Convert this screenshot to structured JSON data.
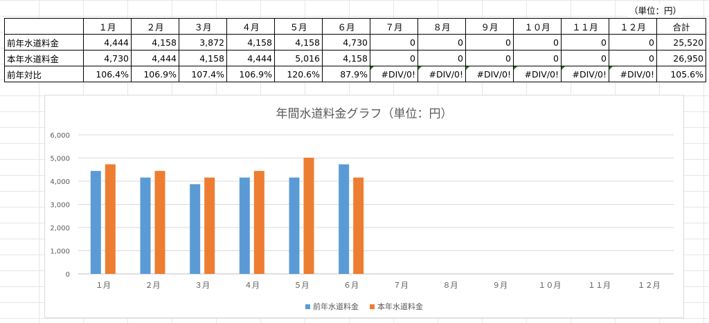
{
  "unit_note": "（単位：円）",
  "table": {
    "headers": [
      "",
      "１月",
      "２月",
      "３月",
      "４月",
      "５月",
      "６月",
      "７月",
      "８月",
      "９月",
      "１０月",
      "１１月",
      "１２月",
      "合計"
    ],
    "rows": [
      {
        "label": "前年水道料金",
        "cells": [
          "4,444",
          "4,158",
          "3,872",
          "4,158",
          "4,158",
          "4,730",
          "0",
          "0",
          "0",
          "0",
          "0",
          "0",
          "25,520"
        ]
      },
      {
        "label": "本年水道料金",
        "cells": [
          "4,730",
          "4,444",
          "4,158",
          "4,444",
          "5,016",
          "4,158",
          "0",
          "0",
          "0",
          "0",
          "0",
          "0",
          "26,950"
        ]
      },
      {
        "label": "前年対比",
        "cells": [
          "106.4%",
          "106.9%",
          "107.4%",
          "106.9%",
          "120.6%",
          "87.9%",
          "#DIV/0!",
          "#DIV/0!",
          "#DIV/0!",
          "#DIV/0!",
          "#DIV/0!",
          "#DIV/0!",
          "105.6%"
        ]
      }
    ]
  },
  "chart_data": {
    "type": "bar",
    "title": "年間水道料金グラフ（単位：円）",
    "categories": [
      "１月",
      "２月",
      "３月",
      "４月",
      "５月",
      "６月",
      "７月",
      "８月",
      "９月",
      "１０月",
      "１１月",
      "１２月"
    ],
    "series": [
      {
        "name": "前年水道料金",
        "color": "#5b9bd5",
        "values": [
          4444,
          4158,
          3872,
          4158,
          4158,
          4730,
          0,
          0,
          0,
          0,
          0,
          0
        ]
      },
      {
        "name": "本年水道料金",
        "color": "#ed7d31",
        "values": [
          4730,
          4444,
          4158,
          4444,
          5016,
          4158,
          0,
          0,
          0,
          0,
          0,
          0
        ]
      }
    ],
    "ylim": [
      0,
      6000
    ],
    "yticks": [
      "0",
      "1,000",
      "2,000",
      "3,000",
      "4,000",
      "5,000",
      "6,000"
    ],
    "grid": true,
    "legend": "bottom"
  }
}
